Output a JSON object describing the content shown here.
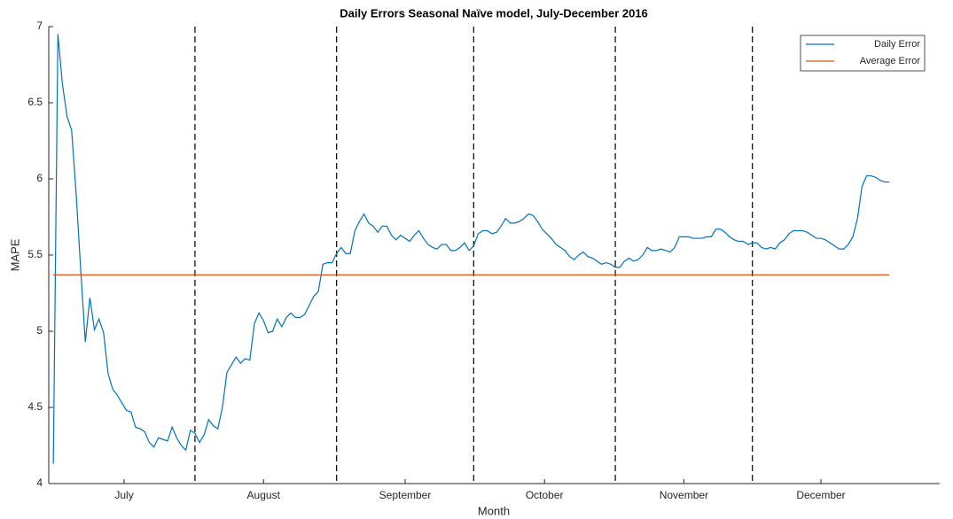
{
  "chart_data": {
    "type": "line",
    "title": "Daily Errors Seasonal Naïve model, July-December 2016",
    "x_label": "Month",
    "y_label": "MAPE",
    "xlim": [
      0,
      195
    ],
    "ylim": [
      4,
      7
    ],
    "yticks": [
      4,
      4.5,
      5,
      5.5,
      6,
      6.5,
      7
    ],
    "xticks": [
      {
        "value": 16.5,
        "label": "July"
      },
      {
        "value": 47,
        "label": "August"
      },
      {
        "value": 78,
        "label": "September"
      },
      {
        "value": 108.5,
        "label": "October"
      },
      {
        "value": 139,
        "label": "November"
      },
      {
        "value": 169,
        "label": "December"
      }
    ],
    "vlines": [
      32,
      63,
      93,
      124,
      154
    ],
    "legend": "upper right",
    "series": [
      {
        "name": "Daily Error",
        "color": "#0072bd",
        "x": [
          1,
          2,
          3,
          4,
          5,
          6,
          7,
          8,
          9,
          10,
          11,
          12,
          13,
          14,
          15,
          16,
          17,
          18,
          19,
          20,
          21,
          22,
          23,
          24,
          25,
          26,
          27,
          28,
          29,
          30,
          31,
          32,
          33,
          34,
          35,
          36,
          37,
          38,
          39,
          40,
          41,
          42,
          43,
          44,
          45,
          46,
          47,
          48,
          49,
          50,
          51,
          52,
          53,
          54,
          55,
          56,
          57,
          58,
          59,
          60,
          61,
          62,
          63,
          64,
          65,
          66,
          67,
          68,
          69,
          70,
          71,
          72,
          73,
          74,
          75,
          76,
          77,
          78,
          79,
          80,
          81,
          82,
          83,
          84,
          85,
          86,
          87,
          88,
          89,
          90,
          91,
          92,
          93,
          94,
          95,
          96,
          97,
          98,
          99,
          100,
          101,
          102,
          103,
          104,
          105,
          106,
          107,
          108,
          109,
          110,
          111,
          112,
          113,
          114,
          115,
          116,
          117,
          118,
          119,
          120,
          121,
          122,
          123,
          124,
          125,
          126,
          127,
          128,
          129,
          130,
          131,
          132,
          133,
          134,
          135,
          136,
          137,
          138,
          139,
          140,
          141,
          142,
          143,
          144,
          145,
          146,
          147,
          148,
          149,
          150,
          151,
          152,
          153,
          154,
          155,
          156,
          157,
          158,
          159,
          160,
          161,
          162,
          163,
          164,
          165,
          166,
          167,
          168,
          169,
          170,
          171,
          172,
          173,
          174,
          175,
          176,
          177,
          178,
          179,
          180,
          181,
          182,
          183,
          184
        ],
        "values": [
          4.13,
          6.95,
          6.62,
          6.41,
          6.32,
          5.9,
          5.4,
          4.93,
          5.22,
          5.01,
          5.08,
          4.99,
          4.72,
          4.62,
          4.58,
          4.53,
          4.48,
          4.47,
          4.37,
          4.36,
          4.34,
          4.27,
          4.24,
          4.3,
          4.29,
          4.28,
          4.37,
          4.3,
          4.25,
          4.22,
          4.35,
          4.33,
          4.27,
          4.32,
          4.42,
          4.38,
          4.36,
          4.5,
          4.73,
          4.78,
          4.83,
          4.79,
          4.82,
          4.81,
          5.05,
          5.12,
          5.07,
          4.99,
          5.0,
          5.08,
          5.03,
          5.09,
          5.12,
          5.09,
          5.09,
          5.11,
          5.17,
          5.23,
          5.26,
          5.44,
          5.45,
          5.45,
          5.51,
          5.55,
          5.51,
          5.51,
          5.66,
          5.72,
          5.77,
          5.71,
          5.69,
          5.65,
          5.69,
          5.69,
          5.63,
          5.6,
          5.63,
          5.61,
          5.59,
          5.63,
          5.66,
          5.61,
          5.57,
          5.55,
          5.54,
          5.57,
          5.57,
          5.53,
          5.53,
          5.55,
          5.58,
          5.53,
          5.56,
          5.64,
          5.66,
          5.66,
          5.64,
          5.65,
          5.69,
          5.74,
          5.71,
          5.71,
          5.72,
          5.74,
          5.77,
          5.76,
          5.72,
          5.67,
          5.64,
          5.61,
          5.57,
          5.55,
          5.53,
          5.49,
          5.47,
          5.5,
          5.52,
          5.49,
          5.48,
          5.46,
          5.44,
          5.45,
          5.44,
          5.42,
          5.42,
          5.46,
          5.48,
          5.46,
          5.47,
          5.5,
          5.55,
          5.53,
          5.53,
          5.54,
          5.53,
          5.52,
          5.55,
          5.62,
          5.62,
          5.62,
          5.61,
          5.61,
          5.61,
          5.62,
          5.62,
          5.67,
          5.67,
          5.65,
          5.62,
          5.6,
          5.59,
          5.59,
          5.57,
          5.58,
          5.58,
          5.55,
          5.54,
          5.55,
          5.54,
          5.58,
          5.6,
          5.64,
          5.66,
          5.66,
          5.66,
          5.65,
          5.63,
          5.61,
          5.61,
          5.6,
          5.58,
          5.56,
          5.54,
          5.54,
          5.57,
          5.62,
          5.74,
          5.95,
          6.02,
          6.02,
          6.01,
          5.99,
          5.98,
          5.98
        ]
      },
      {
        "name": "Average Error",
        "color": "#d95319",
        "x": [
          1,
          184
        ],
        "values": [
          5.37,
          5.37
        ]
      }
    ]
  }
}
